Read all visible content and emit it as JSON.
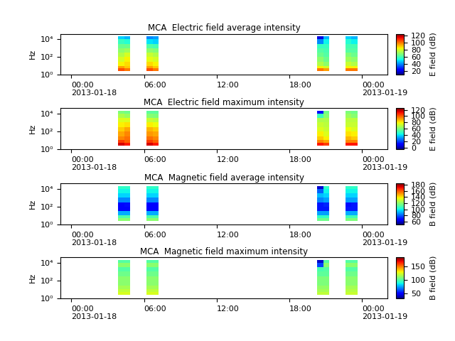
{
  "chart_data": [
    {
      "type": "heatmap",
      "title": "MCA  Electric field average intensity",
      "y_label": "Hz",
      "log": "y",
      "xlim": [
        -0.9,
        26.1
      ],
      "xticks": [
        {
          "value": 0,
          "label": "00:00\n2013-01-18"
        },
        {
          "value": 6,
          "label": "06:00"
        },
        {
          "value": 12,
          "label": "12:00"
        },
        {
          "value": 18,
          "label": "18:00"
        },
        {
          "value": 24,
          "label": "00:00\n2013-01-19"
        }
      ],
      "ylim": [
        1,
        40000
      ],
      "yticks": [
        {
          "value": 1,
          "label": "10⁰"
        },
        {
          "value": 100,
          "label": "10²"
        },
        {
          "value": 10000,
          "label": "10⁴"
        }
      ],
      "x_edges": [
        3.85,
        4.35,
        4.85,
        6.2,
        6.7,
        7.2,
        20.3,
        20.8,
        21.3,
        22.6,
        23.1,
        23.6
      ],
      "y_edges": [
        2.5,
        5,
        10,
        30,
        100,
        300,
        1000,
        3000,
        10000,
        20000
      ],
      "cells": [
        [
          105,
          100,
          null,
          105,
          100,
          null,
          100,
          95,
          null,
          100,
          100
        ],
        [
          95,
          90,
          null,
          95,
          90,
          null,
          85,
          80,
          null,
          85,
          85
        ],
        [
          85,
          88,
          null,
          88,
          85,
          null,
          75,
          70,
          null,
          78,
          75
        ],
        [
          80,
          85,
          null,
          82,
          80,
          null,
          70,
          65,
          null,
          72,
          70
        ],
        [
          75,
          80,
          null,
          78,
          75,
          null,
          65,
          62,
          null,
          68,
          65
        ],
        [
          70,
          72,
          null,
          70,
          68,
          null,
          62,
          60,
          null,
          62,
          62
        ],
        [
          65,
          65,
          null,
          62,
          60,
          null,
          58,
          58,
          null,
          60,
          60
        ],
        [
          58,
          55,
          null,
          50,
          48,
          null,
          40,
          52,
          null,
          55,
          52
        ],
        [
          48,
          45,
          null,
          40,
          42,
          null,
          20,
          45,
          null,
          48,
          45
        ]
      ],
      "colorbar_label": "E field (dB)",
      "colorbar_lim": [
        10,
        125
      ],
      "colorbar_ticks": [
        20,
        40,
        60,
        80,
        100,
        120
      ]
    },
    {
      "type": "heatmap",
      "title": "MCA  Electric field maximum intensity",
      "y_label": "Hz",
      "log": "y",
      "xlim": [
        -0.9,
        26.1
      ],
      "xticks": [
        {
          "value": 0,
          "label": "00:00\n2013-01-18"
        },
        {
          "value": 6,
          "label": "06:00"
        },
        {
          "value": 12,
          "label": "12:00"
        },
        {
          "value": 18,
          "label": "18:00"
        },
        {
          "value": 24,
          "label": "00:00\n2013-01-19"
        }
      ],
      "ylim": [
        1,
        40000
      ],
      "yticks": [
        {
          "value": 1,
          "label": "10⁰"
        },
        {
          "value": 100,
          "label": "10²"
        },
        {
          "value": 10000,
          "label": "10⁴"
        }
      ],
      "x_edges": [
        3.85,
        4.35,
        4.85,
        6.2,
        6.7,
        7.2,
        20.3,
        20.8,
        21.3,
        22.6,
        23.1,
        23.6
      ],
      "y_edges": [
        2.5,
        5,
        10,
        30,
        100,
        300,
        1000,
        3000,
        10000,
        20000
      ],
      "cells": [
        [
          115,
          110,
          null,
          115,
          110,
          null,
          110,
          105,
          null,
          110,
          110
        ],
        [
          105,
          100,
          null,
          105,
          100,
          null,
          95,
          90,
          null,
          95,
          95
        ],
        [
          95,
          98,
          null,
          98,
          95,
          null,
          85,
          80,
          null,
          88,
          85
        ],
        [
          90,
          95,
          null,
          92,
          90,
          null,
          80,
          75,
          null,
          82,
          80
        ],
        [
          85,
          90,
          null,
          88,
          85,
          null,
          75,
          72,
          null,
          78,
          75
        ],
        [
          80,
          82,
          null,
          80,
          78,
          null,
          72,
          70,
          null,
          72,
          72
        ],
        [
          75,
          75,
          null,
          72,
          70,
          null,
          68,
          68,
          null,
          70,
          70
        ],
        [
          68,
          65,
          null,
          62,
          60,
          null,
          50,
          62,
          null,
          65,
          62
        ],
        [
          60,
          58,
          null,
          55,
          55,
          null,
          10,
          58,
          null,
          60,
          58
        ]
      ],
      "colorbar_label": "E field (dB)",
      "colorbar_lim": [
        -5,
        125
      ],
      "colorbar_ticks": [
        0,
        20,
        40,
        60,
        80,
        100,
        120
      ]
    },
    {
      "type": "heatmap",
      "title": "MCA  Magnetic field average intensity",
      "y_label": "Hz",
      "log": "y",
      "xlim": [
        -0.9,
        26.1
      ],
      "xticks": [
        {
          "value": 0,
          "label": "00:00\n2013-01-18"
        },
        {
          "value": 6,
          "label": "06:00"
        },
        {
          "value": 12,
          "label": "12:00"
        },
        {
          "value": 18,
          "label": "18:00"
        },
        {
          "value": 24,
          "label": "00:00\n2013-01-19"
        }
      ],
      "ylim": [
        1,
        40000
      ],
      "yticks": [
        {
          "value": 1,
          "label": "10⁰"
        },
        {
          "value": 100,
          "label": "10²"
        },
        {
          "value": 10000,
          "label": "10⁴"
        }
      ],
      "x_edges": [
        3.85,
        4.35,
        4.85,
        6.2,
        6.7,
        7.2,
        20.3,
        20.8,
        21.3,
        22.6,
        23.1,
        23.6
      ],
      "y_edges": [
        2.5,
        5,
        10,
        30,
        100,
        300,
        1000,
        3000,
        10000,
        20000
      ],
      "cells": [
        [
          120,
          120,
          null,
          120,
          120,
          null,
          115,
          115,
          null,
          118,
          118
        ],
        [
          110,
          110,
          null,
          110,
          110,
          null,
          105,
          105,
          null,
          108,
          108
        ],
        [
          90,
          90,
          null,
          90,
          90,
          null,
          88,
          88,
          null,
          90,
          90
        ],
        [
          65,
          65,
          null,
          65,
          65,
          null,
          70,
          70,
          null,
          70,
          70
        ],
        [
          65,
          68,
          null,
          65,
          65,
          null,
          70,
          72,
          null,
          68,
          70
        ],
        [
          85,
          85,
          null,
          85,
          85,
          null,
          85,
          88,
          null,
          88,
          88
        ],
        [
          95,
          95,
          null,
          95,
          95,
          null,
          92,
          95,
          null,
          95,
          95
        ],
        [
          100,
          100,
          null,
          100,
          100,
          null,
          80,
          100,
          null,
          100,
          100
        ],
        [
          105,
          105,
          null,
          105,
          105,
          null,
          60,
          105,
          null,
          105,
          105
        ]
      ],
      "colorbar_label": "B field (dB)",
      "colorbar_lim": [
        50,
        185
      ],
      "colorbar_ticks": [
        60,
        80,
        100,
        120,
        140,
        160,
        180
      ]
    },
    {
      "type": "heatmap",
      "title": "MCA  Magnetic field maximum intensity",
      "y_label": "Hz",
      "log": "y",
      "xlim": [
        -0.9,
        26.1
      ],
      "xticks": [
        {
          "value": 0,
          "label": "00:00\n2013-01-18"
        },
        {
          "value": 6,
          "label": "06:00"
        },
        {
          "value": 12,
          "label": "12:00"
        },
        {
          "value": 18,
          "label": "18:00"
        },
        {
          "value": 24,
          "label": "00:00\n2013-01-19"
        }
      ],
      "ylim": [
        1,
        40000
      ],
      "yticks": [
        {
          "value": 1,
          "label": "10⁰"
        },
        {
          "value": 100,
          "label": "10²"
        },
        {
          "value": 10000,
          "label": "10⁴"
        }
      ],
      "x_edges": [
        3.85,
        4.35,
        4.85,
        6.2,
        6.7,
        7.2,
        20.3,
        20.8,
        21.3,
        22.6,
        23.1,
        23.6
      ],
      "y_edges": [
        2.5,
        5,
        10,
        30,
        100,
        300,
        1000,
        3000,
        10000,
        20000
      ],
      "cells": [
        [
          125,
          125,
          null,
          125,
          125,
          null,
          120,
          120,
          null,
          122,
          122
        ],
        [
          120,
          120,
          null,
          120,
          120,
          null,
          115,
          115,
          null,
          118,
          118
        ],
        [
          115,
          115,
          null,
          115,
          115,
          null,
          112,
          112,
          null,
          115,
          115
        ],
        [
          110,
          110,
          null,
          110,
          110,
          null,
          108,
          108,
          null,
          110,
          110
        ],
        [
          110,
          110,
          null,
          110,
          110,
          null,
          108,
          108,
          null,
          110,
          110
        ],
        [
          105,
          105,
          null,
          105,
          105,
          null,
          102,
          102,
          null,
          105,
          105
        ],
        [
          100,
          100,
          null,
          100,
          100,
          null,
          98,
          100,
          null,
          100,
          100
        ],
        [
          110,
          110,
          null,
          110,
          110,
          null,
          60,
          110,
          null,
          110,
          110
        ],
        [
          100,
          100,
          null,
          100,
          100,
          null,
          40,
          100,
          null,
          100,
          100
        ]
      ],
      "colorbar_label": "B field (dB)",
      "colorbar_lim": [
        30,
        185
      ],
      "colorbar_ticks": [
        50,
        100,
        150
      ]
    }
  ]
}
